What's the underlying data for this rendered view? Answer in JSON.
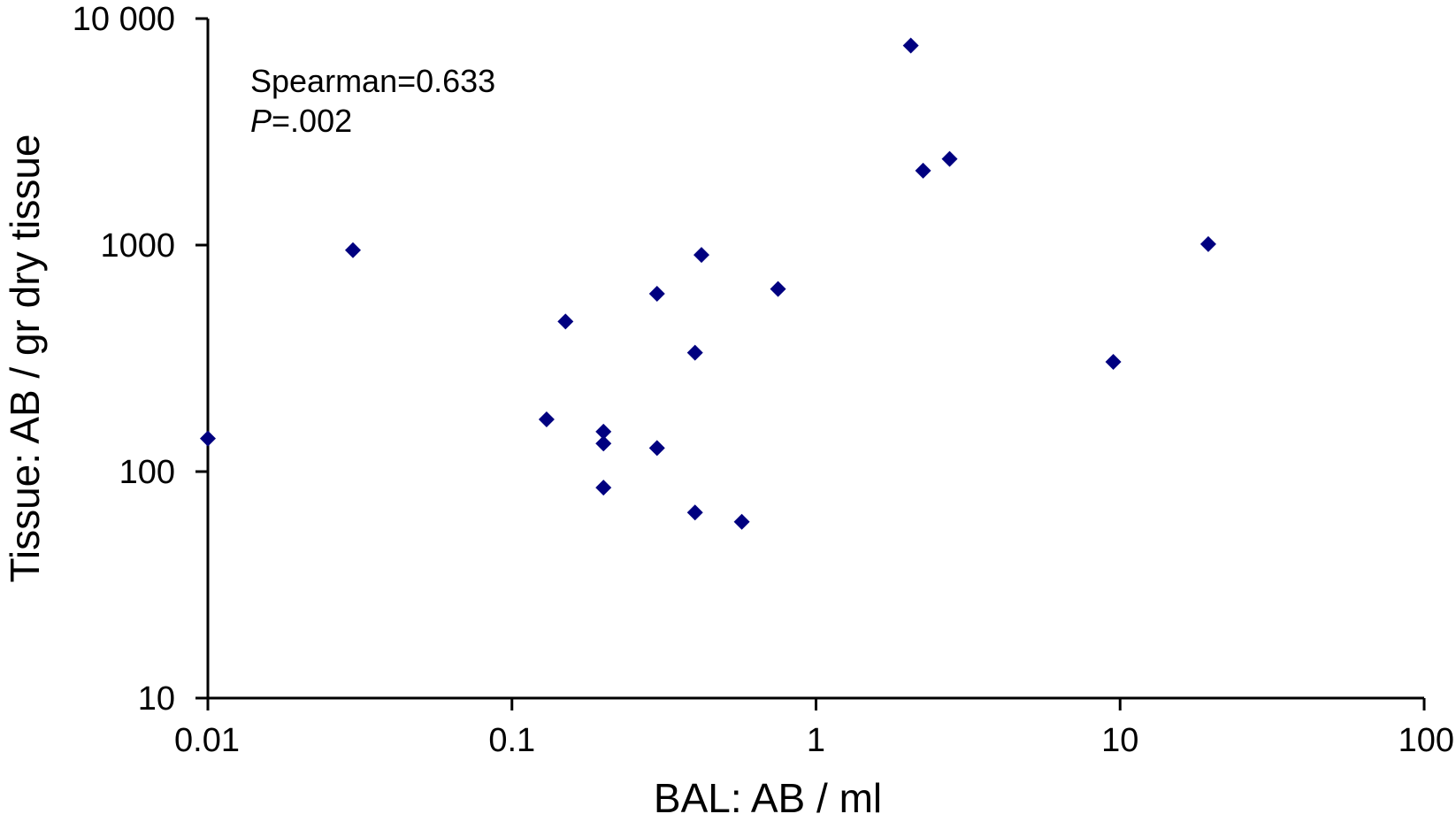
{
  "chart_data": {
    "type": "scatter",
    "title": "",
    "xlabel": "BAL: AB / ml",
    "ylabel": "Tissue: AB / gr dry tissue",
    "x_scale": "log",
    "y_scale": "log",
    "xlim": [
      0.01,
      100
    ],
    "ylim": [
      10,
      10000
    ],
    "x_ticks": [
      0.01,
      0.1,
      1,
      10,
      100
    ],
    "x_tick_labels": [
      "0.01",
      "0.1",
      "1",
      "10",
      "100"
    ],
    "y_ticks": [
      10,
      100,
      1000,
      10000
    ],
    "y_tick_labels": [
      "10",
      "100",
      "1000",
      "10 000"
    ],
    "grid": false,
    "legend": "none",
    "marker": "diamond",
    "marker_color": "#000080",
    "annotations": {
      "spearman": "Spearman=0.633",
      "p_label": "P",
      "p_value": "=.002"
    },
    "points": [
      {
        "x": 0.01,
        "y": 140
      },
      {
        "x": 0.03,
        "y": 950
      },
      {
        "x": 0.13,
        "y": 170
      },
      {
        "x": 0.15,
        "y": 460
      },
      {
        "x": 0.2,
        "y": 150
      },
      {
        "x": 0.2,
        "y": 133
      },
      {
        "x": 0.2,
        "y": 85
      },
      {
        "x": 0.3,
        "y": 610
      },
      {
        "x": 0.3,
        "y": 127
      },
      {
        "x": 0.4,
        "y": 335
      },
      {
        "x": 0.4,
        "y": 66
      },
      {
        "x": 0.42,
        "y": 905
      },
      {
        "x": 0.57,
        "y": 60
      },
      {
        "x": 0.75,
        "y": 640
      },
      {
        "x": 2.05,
        "y": 7600
      },
      {
        "x": 2.25,
        "y": 2130
      },
      {
        "x": 2.75,
        "y": 2400
      },
      {
        "x": 9.5,
        "y": 305
      },
      {
        "x": 19.5,
        "y": 1010
      }
    ]
  }
}
